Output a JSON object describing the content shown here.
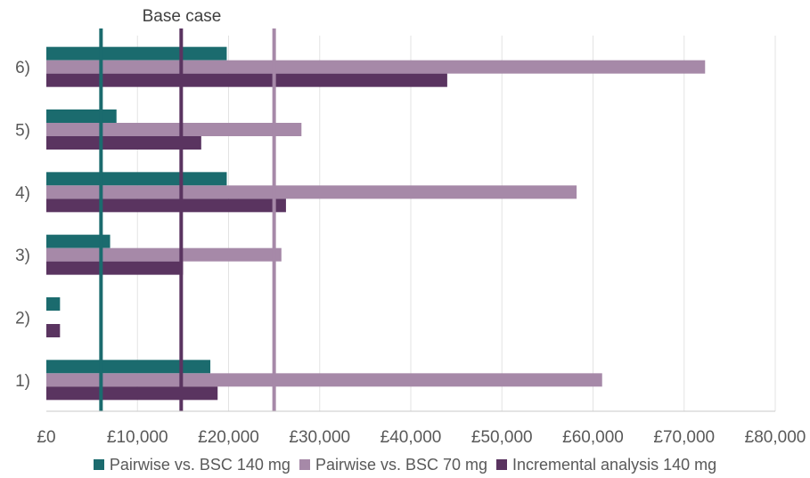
{
  "chart_data": {
    "type": "bar",
    "orientation": "horizontal",
    "categories": [
      "1)",
      "2)",
      "3)",
      "4)",
      "5)",
      "6)"
    ],
    "series": [
      {
        "name": "Pairwise vs. BSC 140 mg",
        "color": "#1b6b6e",
        "values": [
          18000,
          1500,
          7000,
          19800,
          7700,
          19800
        ]
      },
      {
        "name": "Pairwise vs. BSC 70 mg",
        "color": "#a689a8",
        "values": [
          61000,
          null,
          25800,
          58200,
          28000,
          72300
        ]
      },
      {
        "name": "Incremental analysis 140 mg",
        "color": "#5a3460",
        "values": [
          18800,
          1500,
          15000,
          26300,
          17000,
          44000
        ]
      }
    ],
    "reference_lines": [
      {
        "value": 6000,
        "color": "#1b6b6e"
      },
      {
        "value": 14800,
        "color": "#5a3460"
      },
      {
        "value": 25000,
        "color": "#a689a8"
      }
    ],
    "annotation": "Base case",
    "xlim": [
      0,
      80000
    ],
    "xticks": [
      "£0",
      "£10,000",
      "£20,000",
      "£30,000",
      "£40,000",
      "£50,000",
      "£60,000",
      "£70,000",
      "£80,000"
    ],
    "grid": "vertical",
    "legend_position": "bottom"
  }
}
